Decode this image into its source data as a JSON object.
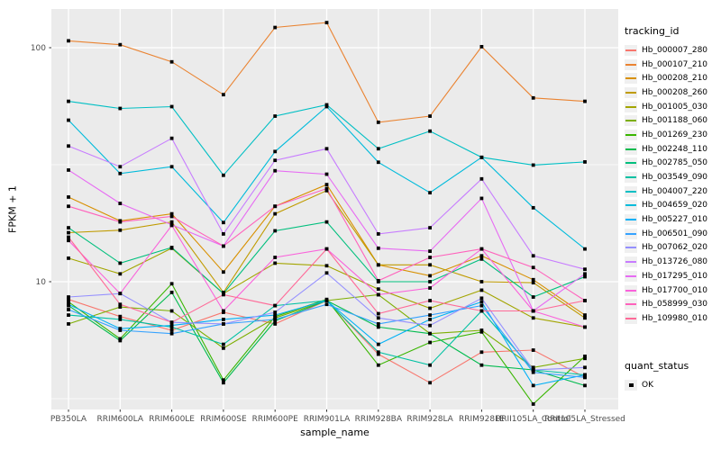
{
  "chart": {
    "ylabel": "FPKM + 1",
    "xlabel": "sample_name",
    "legend_title": "tracking_id",
    "quant_legend_title": "quant_status",
    "quant_ok_label": "OK",
    "colors": {
      "panel_background": "#EBEBEB",
      "gridline": "#FFFFFF",
      "tick_mark": "#333333",
      "tick_label": "#4D4D4D",
      "point": "#000000"
    }
  },
  "chart_data": {
    "type": "line",
    "log_y": true,
    "grid": true,
    "legend_position": "right",
    "title": "",
    "xlabel": "sample_name",
    "ylabel": "FPKM + 1",
    "ylim": [
      2.9,
      146
    ],
    "y_ticks": [
      {
        "label": "100",
        "value": 100
      },
      {
        "label": "10",
        "value": 10
      }
    ],
    "y_minor_gridlines": [
      31.62,
      3.162
    ],
    "point_shape": "filled-square",
    "point_legend": {
      "title": "quant_status",
      "items": [
        {
          "label": "OK",
          "shape": "filled-square",
          "color": "#000000"
        }
      ]
    },
    "categories": [
      "PB350LA",
      "RRIM600LA",
      "RRIM600LE",
      "RRIM600SE",
      "RRIM600PE",
      "RRIM901LA",
      "RRIM928BA",
      "RRIM928LA",
      "RRIM928LE",
      "RRII105LA_Control",
      "RRII105LA_Stressed"
    ],
    "series": [
      {
        "name": "Hb_000007_280",
        "color": "#F8766D",
        "values": [
          8.4,
          7.1,
          6.2,
          7.4,
          6.6,
          8.3,
          4.9,
          3.7,
          5.0,
          5.1,
          3.9
        ]
      },
      {
        "name": "Hb_000107_210",
        "color": "#EA8331",
        "values": [
          107,
          103,
          87,
          63,
          122,
          128,
          48,
          51,
          101,
          61,
          59
        ]
      },
      {
        "name": "Hb_000208_210",
        "color": "#D89000",
        "values": [
          23,
          18.2,
          19.5,
          11.0,
          21,
          26,
          11.8,
          10.6,
          12.9,
          10.2,
          7.2
        ]
      },
      {
        "name": "Hb_000208_260",
        "color": "#C09B00",
        "values": [
          16.2,
          16.6,
          18.0,
          9.0,
          19.5,
          24.5,
          11.8,
          11.8,
          10.0,
          9.9,
          7.0
        ]
      },
      {
        "name": "Hb_001005_030",
        "color": "#A3A500",
        "values": [
          12.6,
          10.8,
          13.9,
          8.9,
          12.0,
          11.7,
          9.3,
          7.7,
          9.2,
          7.0,
          6.4
        ]
      },
      {
        "name": "Hb_001188_060",
        "color": "#7CAE00",
        "values": [
          6.6,
          7.8,
          7.5,
          5.2,
          7.0,
          8.3,
          8.8,
          6.0,
          6.2,
          4.3,
          4.7
        ]
      },
      {
        "name": "Hb_001269_230",
        "color": "#39B600",
        "values": [
          8.2,
          5.7,
          9.8,
          3.8,
          7.1,
          8.4,
          4.4,
          5.5,
          6.1,
          3.0,
          4.8
        ]
      },
      {
        "name": "Hb_002248_110",
        "color": "#00BB4E",
        "values": [
          7.9,
          5.6,
          9.0,
          3.7,
          6.8,
          8.3,
          6.4,
          6.0,
          4.4,
          4.2,
          3.6
        ]
      },
      {
        "name": "Hb_002785_050",
        "color": "#00BF7D",
        "values": [
          17.0,
          12.0,
          14.0,
          8.9,
          16.5,
          18.0,
          10.0,
          10.0,
          12.5,
          8.6,
          10.5
        ]
      },
      {
        "name": "Hb_003549_090",
        "color": "#00C1A3",
        "values": [
          7.2,
          6.9,
          6.4,
          5.4,
          7.9,
          8.3,
          5.0,
          4.4,
          7.5,
          4.2,
          4.0
        ]
      },
      {
        "name": "Hb_004007_220",
        "color": "#00BFC4",
        "values": [
          59,
          55,
          56,
          28.5,
          51,
          57,
          37,
          44,
          34,
          31.5,
          32.5
        ]
      },
      {
        "name": "Hb_004659_020",
        "color": "#00BBDB",
        "values": [
          49,
          29,
          31,
          17.9,
          36,
          56,
          32.4,
          24,
          34,
          20.7,
          13.8
        ]
      },
      {
        "name": "Hb_005227_010",
        "color": "#00B0F6",
        "values": [
          8.0,
          6.3,
          6.5,
          6.9,
          7.2,
          8.3,
          5.4,
          6.9,
          8.2,
          3.6,
          4.0
        ]
      },
      {
        "name": "Hb_006501_090",
        "color": "#35A2FF",
        "values": [
          7.6,
          6.2,
          6.0,
          6.6,
          6.9,
          8.0,
          6.6,
          7.2,
          7.9,
          4.1,
          3.9
        ]
      },
      {
        "name": "Hb_007062_020",
        "color": "#9590FF",
        "values": [
          8.6,
          8.9,
          6.7,
          6.6,
          7.4,
          10.9,
          7.0,
          6.5,
          8.5,
          4.2,
          4.3
        ]
      },
      {
        "name": "Hb_013726_080",
        "color": "#C77CFF",
        "values": [
          38,
          31,
          41,
          16.0,
          33,
          37,
          16.0,
          17.0,
          27.5,
          12.9,
          11.3
        ]
      },
      {
        "name": "Hb_017295_010",
        "color": "#E76BF3",
        "values": [
          30,
          21.6,
          17.5,
          14.2,
          29.8,
          28.8,
          13.9,
          13.5,
          22.7,
          7.5,
          10.8
        ]
      },
      {
        "name": "Hb_017700_010",
        "color": "#FA62DB",
        "values": [
          15.0,
          8.9,
          17.4,
          7.5,
          12.7,
          13.8,
          8.8,
          9.4,
          13.8,
          7.5,
          6.4
        ]
      },
      {
        "name": "Hb_058999_030",
        "color": "#FF62BC",
        "values": [
          21,
          18,
          19,
          14.2,
          21,
          25,
          10.1,
          12.7,
          13.8,
          11.5,
          8.3
        ]
      },
      {
        "name": "Hb_109980_010",
        "color": "#FF6A98",
        "values": [
          15.5,
          8.0,
          6.7,
          8.8,
          7.9,
          13.8,
          7.3,
          8.3,
          7.5,
          7.5,
          8.3
        ]
      }
    ]
  }
}
